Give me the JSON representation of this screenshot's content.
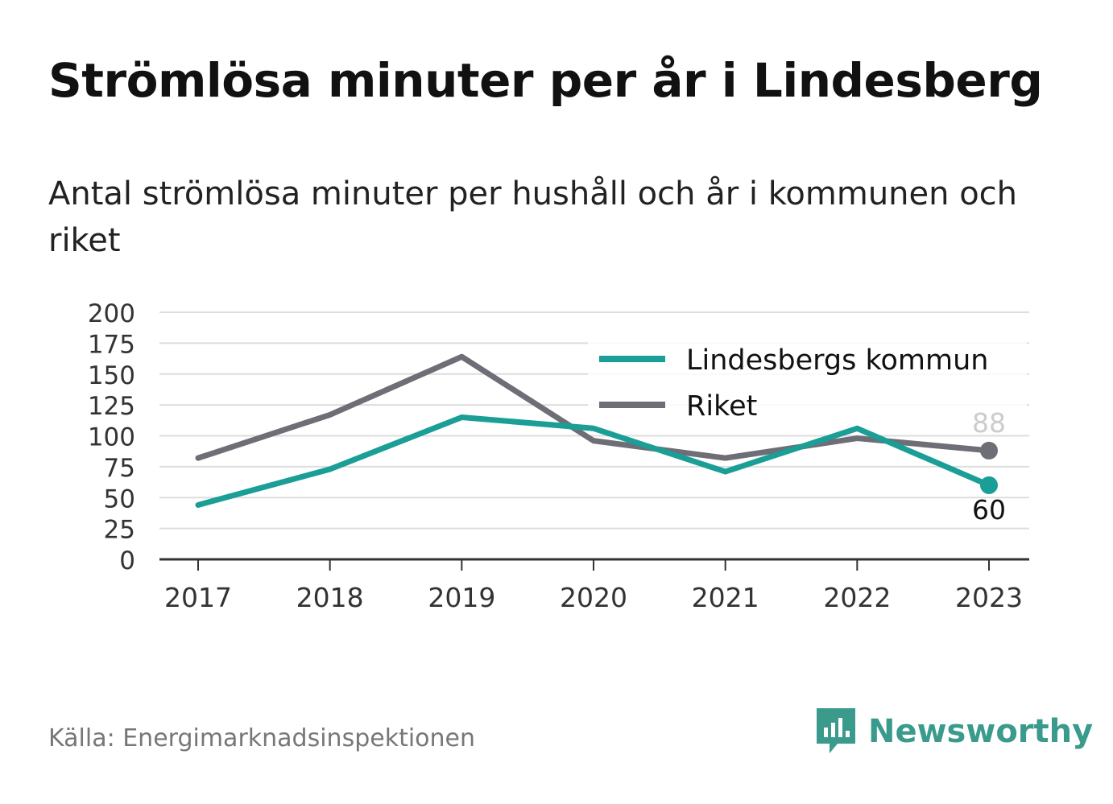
{
  "chart_data": {
    "type": "line",
    "title": "Strömlösa minuter per år i Lindesberg",
    "subtitle": "Antal strömlösa minuter per hushåll och år i kommunen och riket",
    "categories": [
      "2017",
      "2018",
      "2019",
      "2020",
      "2021",
      "2022",
      "2023"
    ],
    "series": [
      {
        "name": "Lindesbergs kommun",
        "color": "#1a9e96",
        "values": [
          44,
          73,
          115,
          106,
          71,
          106,
          60
        ],
        "end_label": "60"
      },
      {
        "name": "Riket",
        "color": "#6e6e76",
        "values": [
          82,
          117,
          164,
          96,
          82,
          98,
          88
        ],
        "end_label": "88"
      }
    ],
    "ylim": [
      0,
      200
    ],
    "yticks": [
      "0",
      "25",
      "50",
      "75",
      "100",
      "125",
      "150",
      "175",
      "200"
    ],
    "grid": true,
    "legend_position": "top-right"
  },
  "footer": {
    "source": "Källa: Energimarknadsinspektionen",
    "brand": "Newsworthy"
  }
}
